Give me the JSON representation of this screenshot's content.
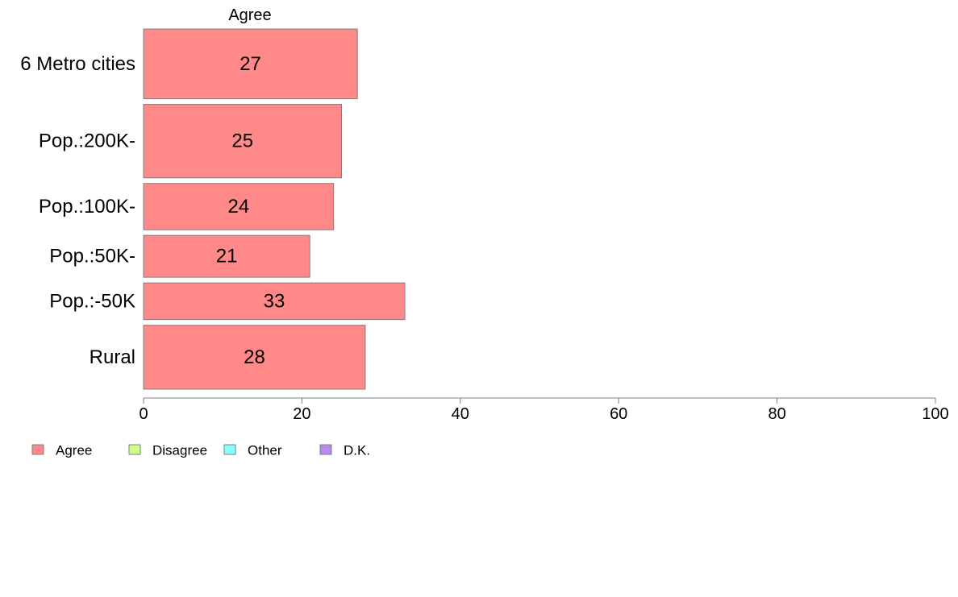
{
  "chart_data": {
    "type": "bar",
    "orientation": "horizontal",
    "stacked": true,
    "title": "Agree",
    "categories": [
      "6 Metro cities",
      "Pop.:200K-",
      "Pop.:100K-",
      "Pop.:50K-",
      "Pop.:-50K",
      "Rural"
    ],
    "relative_bar_widths": [
      0.95,
      1.0,
      0.63,
      0.57,
      0.5,
      0.87
    ],
    "series": [
      {
        "name": "Agree",
        "values": [
          27,
          25,
          24,
          21,
          33,
          28
        ],
        "color": "#ff8888"
      },
      {
        "name": "Disagree",
        "values": [
          null,
          null,
          null,
          null,
          null,
          null
        ],
        "color": "#ccff88"
      },
      {
        "name": "Other",
        "values": [
          null,
          null,
          null,
          null,
          null,
          null
        ],
        "color": "#88ffff"
      },
      {
        "name": "D.K.",
        "values": [
          null,
          null,
          null,
          null,
          null,
          null
        ],
        "color": "#bb88ee"
      }
    ],
    "data_labels": [
      "27",
      "25",
      "24",
      "21",
      "33",
      "28"
    ],
    "xlim": [
      0,
      100
    ],
    "xticks": [
      0,
      20,
      40,
      60,
      80,
      100
    ],
    "xtick_labels": [
      "0",
      "20",
      "40",
      "60",
      "80",
      "100"
    ],
    "xlabel": "",
    "ylabel": "",
    "grid": false,
    "legend_position": "bottom-left"
  }
}
